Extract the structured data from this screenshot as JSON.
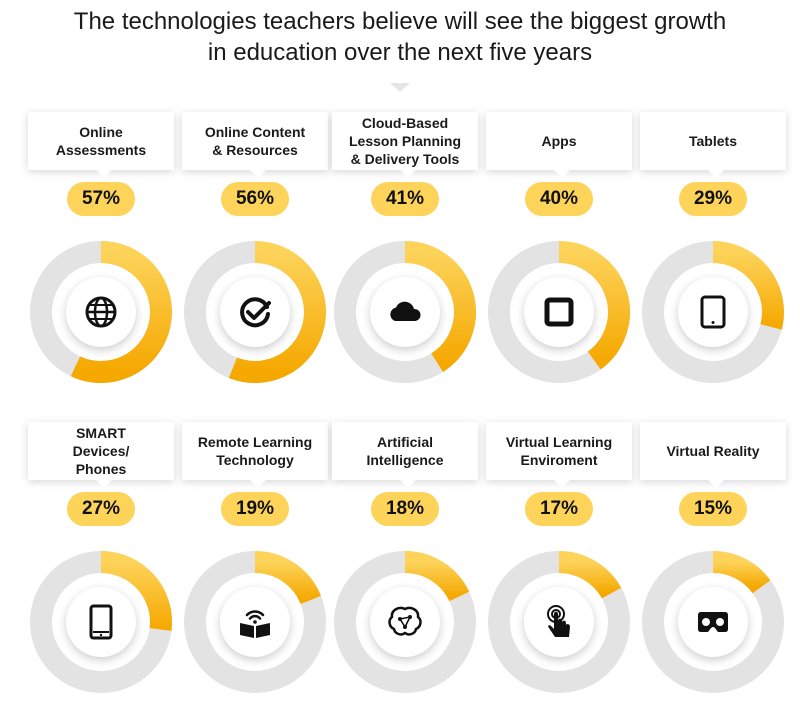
{
  "title": {
    "line1": "The technologies teachers believe will see the biggest growth",
    "line2": "in education over the next five years"
  },
  "colors": {
    "accent_start": "#fdd35a",
    "accent_end": "#f5a800",
    "track": "#e3e3e3",
    "pill": "#fdd35a"
  },
  "chart_data": {
    "type": "donut",
    "categories": [
      "Online\nAssessments",
      "Online Content\n& Resources",
      "Cloud-Based\nLesson Planning\n& Delivery Tools",
      "Apps",
      "Tablets",
      "SMART\nDevices/\nPhones",
      "Remote Learning\nTechnology",
      "Artificial\nIntelligence",
      "Virtual Learning\nEnviroment",
      "Virtual Reality"
    ],
    "values": [
      57,
      56,
      41,
      40,
      29,
      27,
      19,
      18,
      17,
      15
    ],
    "value_labels": [
      "57%",
      "56%",
      "41%",
      "40%",
      "29%",
      "27%",
      "19%",
      "18%",
      "17%",
      "15%"
    ],
    "icons": [
      "globe-icon",
      "check-circle-icon",
      "cloud-icon",
      "app-square-icon",
      "tablet-icon",
      "phone-icon",
      "book-wifi-icon",
      "brain-circuit-icon",
      "touch-hand-icon",
      "vr-headset-icon"
    ],
    "max": 100,
    "layout": "grid-2-rows-5-columns"
  }
}
